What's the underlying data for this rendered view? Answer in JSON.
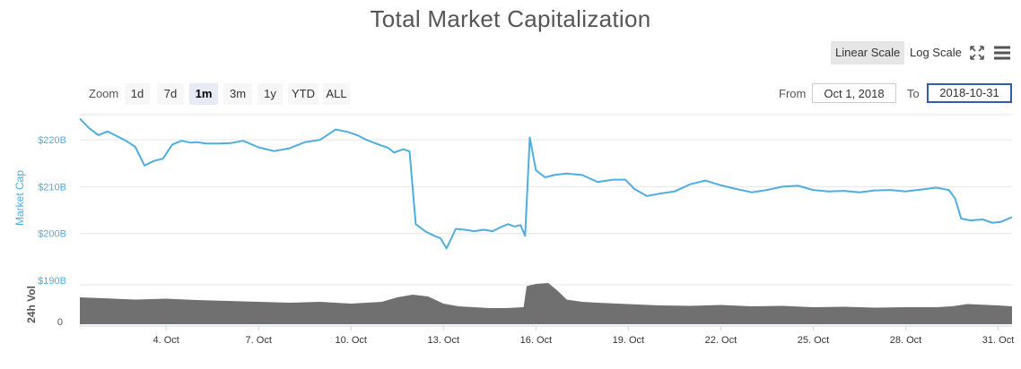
{
  "title": "Total Market Capitalization",
  "scale_buttons": {
    "linear": "Linear Scale",
    "log": "Log Scale",
    "active": "linear"
  },
  "icons": {
    "fullscreen": "fullscreen-icon",
    "menu": "hamburger-menu-icon"
  },
  "zoom": {
    "label": "Zoom",
    "options": [
      "1d",
      "7d",
      "1m",
      "3m",
      "1y",
      "YTD",
      "ALL"
    ],
    "active": "1m"
  },
  "range": {
    "from_label": "From",
    "from_value": "Oct 1, 2018",
    "to_label": "To",
    "to_value": "2018-10-31"
  },
  "colors": {
    "line": "#4eaee0",
    "volume": "#707070",
    "grid": "#e6e6e6",
    "axis_label": "#4eaee0"
  },
  "chart_data": [
    {
      "type": "line",
      "title": "Total Market Capitalization",
      "ylabel": "Market Cap",
      "ylim": [
        190,
        225
      ],
      "y_unit": "B",
      "yticks": [
        "$190B",
        "$200B",
        "$210B",
        "$220B"
      ],
      "x_tick_labels": [
        "4. Oct",
        "7. Oct",
        "10. Oct",
        "13. Oct",
        "16. Oct",
        "19. Oct",
        "22. Oct",
        "25. Oct",
        "28. Oct",
        "31. Oct"
      ],
      "xlim": [
        1.2,
        31.45
      ],
      "series": [
        {
          "x": [
            1.2,
            1.5,
            1.8,
            2.1,
            2.4,
            2.7,
            3.0,
            3.3,
            3.6,
            3.9,
            4.2,
            4.5,
            4.8,
            5.0,
            5.3,
            5.7,
            6.1,
            6.5,
            7.0,
            7.5,
            8.0,
            8.5,
            9.0,
            9.5,
            9.9,
            10.2,
            10.5,
            10.9,
            11.2,
            11.4,
            11.7,
            11.9,
            12.1,
            12.4,
            12.7,
            12.9,
            13.1,
            13.4,
            13.7,
            14.0,
            14.3,
            14.6,
            14.9,
            15.1,
            15.3,
            15.5,
            15.65,
            15.8,
            16.0,
            16.3,
            16.6,
            17.0,
            17.5,
            18.0,
            18.5,
            18.9,
            19.2,
            19.6,
            20.0,
            20.5,
            21.0,
            21.5,
            22.0,
            22.5,
            23.0,
            23.5,
            24.0,
            24.5,
            25.0,
            25.5,
            26.0,
            26.5,
            27.0,
            27.5,
            28.0,
            28.5,
            29.0,
            29.4,
            29.6,
            29.8,
            30.1,
            30.5,
            30.8,
            31.1,
            31.45
          ],
          "y": [
            224.5,
            222.5,
            221.0,
            221.8,
            220.8,
            219.8,
            218.5,
            214.5,
            215.5,
            216.0,
            219.0,
            219.8,
            219.4,
            219.5,
            219.2,
            219.2,
            219.3,
            219.8,
            218.4,
            217.6,
            218.2,
            219.5,
            220.0,
            222.2,
            221.7,
            221.0,
            220.0,
            219.0,
            218.3,
            217.3,
            218.0,
            217.5,
            202.0,
            200.5,
            199.5,
            199.0,
            196.8,
            201.0,
            200.8,
            200.5,
            200.8,
            200.5,
            201.5,
            202.0,
            201.5,
            201.8,
            199.5,
            220.5,
            213.5,
            212.0,
            212.5,
            212.8,
            212.5,
            211.0,
            211.5,
            211.5,
            209.5,
            208.0,
            208.5,
            209.0,
            210.5,
            211.3,
            210.3,
            209.5,
            208.8,
            209.3,
            210.0,
            210.2,
            209.3,
            209.0,
            209.1,
            208.8,
            209.2,
            209.3,
            209.0,
            209.4,
            209.8,
            209.3,
            207.5,
            203.2,
            202.8,
            203.0,
            202.3,
            202.5,
            203.5
          ]
        }
      ]
    },
    {
      "type": "area",
      "ylabel": "24h Vol",
      "yticks": [
        "0"
      ],
      "y_unit": "relative",
      "ylim": [
        0,
        1
      ],
      "xlim": [
        1.2,
        31.45
      ],
      "series": [
        {
          "x": [
            1.2,
            2.0,
            3.0,
            4.0,
            5.0,
            6.0,
            7.0,
            8.0,
            9.0,
            10.0,
            11.0,
            11.5,
            12.0,
            12.5,
            13.0,
            13.5,
            14.0,
            14.5,
            15.0,
            15.6,
            15.7,
            16.0,
            16.4,
            16.7,
            17.0,
            17.5,
            18.0,
            19.0,
            20.0,
            21.0,
            22.0,
            23.0,
            24.0,
            25.0,
            26.0,
            27.0,
            28.0,
            29.0,
            29.5,
            30.0,
            31.0,
            31.45
          ],
          "y": [
            0.6,
            0.58,
            0.55,
            0.57,
            0.54,
            0.52,
            0.5,
            0.48,
            0.5,
            0.46,
            0.5,
            0.6,
            0.66,
            0.62,
            0.46,
            0.4,
            0.38,
            0.36,
            0.36,
            0.38,
            0.85,
            0.9,
            0.92,
            0.75,
            0.55,
            0.5,
            0.48,
            0.45,
            0.42,
            0.41,
            0.43,
            0.4,
            0.41,
            0.38,
            0.39,
            0.37,
            0.38,
            0.38,
            0.4,
            0.45,
            0.42,
            0.4
          ]
        }
      ]
    }
  ]
}
